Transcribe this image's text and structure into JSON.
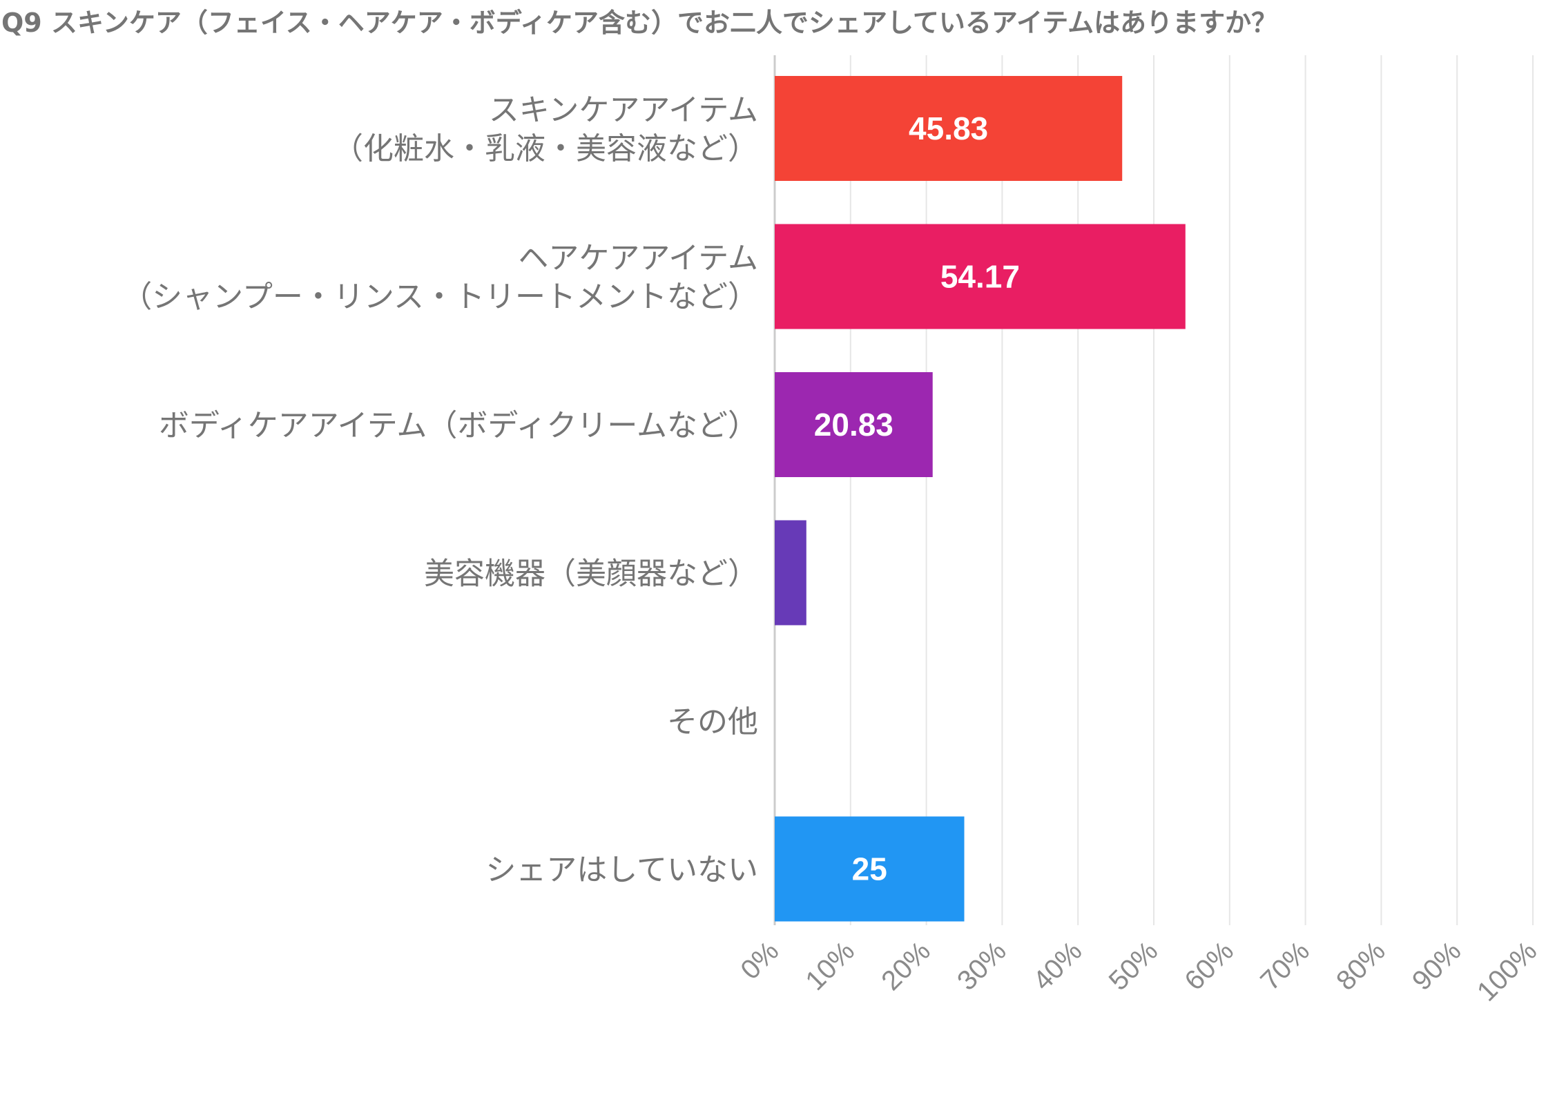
{
  "chart_data": {
    "type": "bar",
    "orientation": "horizontal",
    "title": "Q9 スキンケア（フェイス・ヘアケア・ボディケア含む）でお二人でシェアしているアイテムはありますか？",
    "categories": [
      [
        "スキンケアアイテム",
        "（化粧水・乳液・美容液など）"
      ],
      [
        "ヘアケアアイテム",
        "（シャンプー・リンス・トリートメントなど）"
      ],
      [
        "ボディケアアイテム（ボディクリームなど）"
      ],
      [
        "美容機器（美顔器など）"
      ],
      [
        "その他"
      ],
      [
        "シェアはしていない"
      ]
    ],
    "values": [
      45.83,
      54.17,
      20.83,
      4.17,
      0,
      25
    ],
    "data_labels": [
      "45.83",
      "54.17",
      "20.83",
      "",
      "",
      "25"
    ],
    "colors": [
      "#f44336",
      "#e91e63",
      "#9c27b0",
      "#673ab7",
      "#3f51b5",
      "#2196f3"
    ],
    "xlim": [
      0,
      100
    ],
    "xticks": [
      "0%",
      "10%",
      "20%",
      "30%",
      "40%",
      "50%",
      "60%",
      "70%",
      "80%",
      "90%",
      "100%"
    ],
    "grid": true,
    "gridline_color": "#e6e6e6",
    "axis_color": "#cccccc",
    "legend": "none"
  }
}
